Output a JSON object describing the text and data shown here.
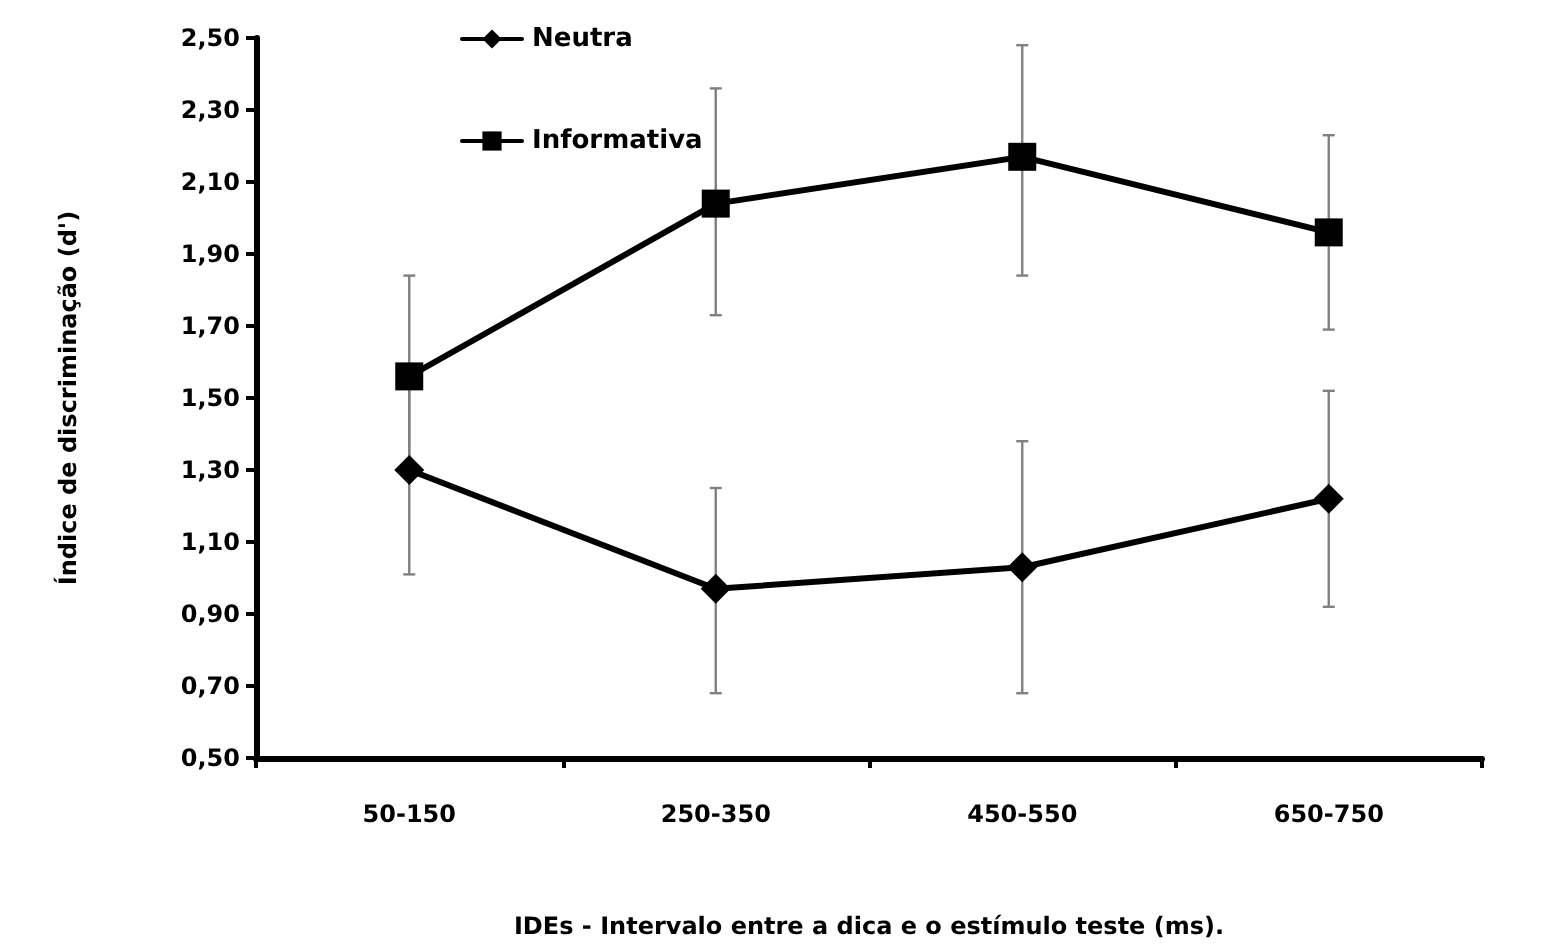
{
  "chart_data": {
    "type": "line",
    "xlabel": "IDEs - Intervalo entre a dica e o estímulo teste (ms).",
    "ylabel": "Índice de discriminação (d')",
    "categories": [
      "50-150",
      "250-350",
      "450-550",
      "650-750"
    ],
    "series": [
      {
        "name": "Neutra",
        "color": "#000000",
        "marker": "diamond",
        "values": [
          1.3,
          0.97,
          1.03,
          1.22
        ],
        "errors": [
          [
            1.01,
            1.59
          ],
          [
            0.68,
            1.25
          ],
          [
            0.68,
            1.38
          ],
          [
            0.92,
            1.52
          ]
        ]
      },
      {
        "name": "Informativa",
        "color": "#000000",
        "marker": "square",
        "values": [
          1.56,
          2.04,
          2.17,
          1.96
        ],
        "errors": [
          [
            1.28,
            1.84
          ],
          [
            1.73,
            2.36
          ],
          [
            1.84,
            2.48
          ],
          [
            1.69,
            2.23
          ]
        ]
      }
    ],
    "ylim": [
      0.5,
      2.5
    ],
    "yticks": [
      {
        "value": 0.5,
        "label": "0,50"
      },
      {
        "value": 0.7,
        "label": "0,70"
      },
      {
        "value": 0.9,
        "label": "0,90"
      },
      {
        "value": 1.1,
        "label": "1,10"
      },
      {
        "value": 1.3,
        "label": "1,30"
      },
      {
        "value": 1.5,
        "label": "1,50"
      },
      {
        "value": 1.7,
        "label": "1,70"
      },
      {
        "value": 1.9,
        "label": "1,90"
      },
      {
        "value": 2.1,
        "label": "2,10"
      },
      {
        "value": 2.3,
        "label": "2,30"
      },
      {
        "value": 2.5,
        "label": "2,50"
      }
    ],
    "grid": false,
    "legend": "top left",
    "line_style": "solid"
  }
}
